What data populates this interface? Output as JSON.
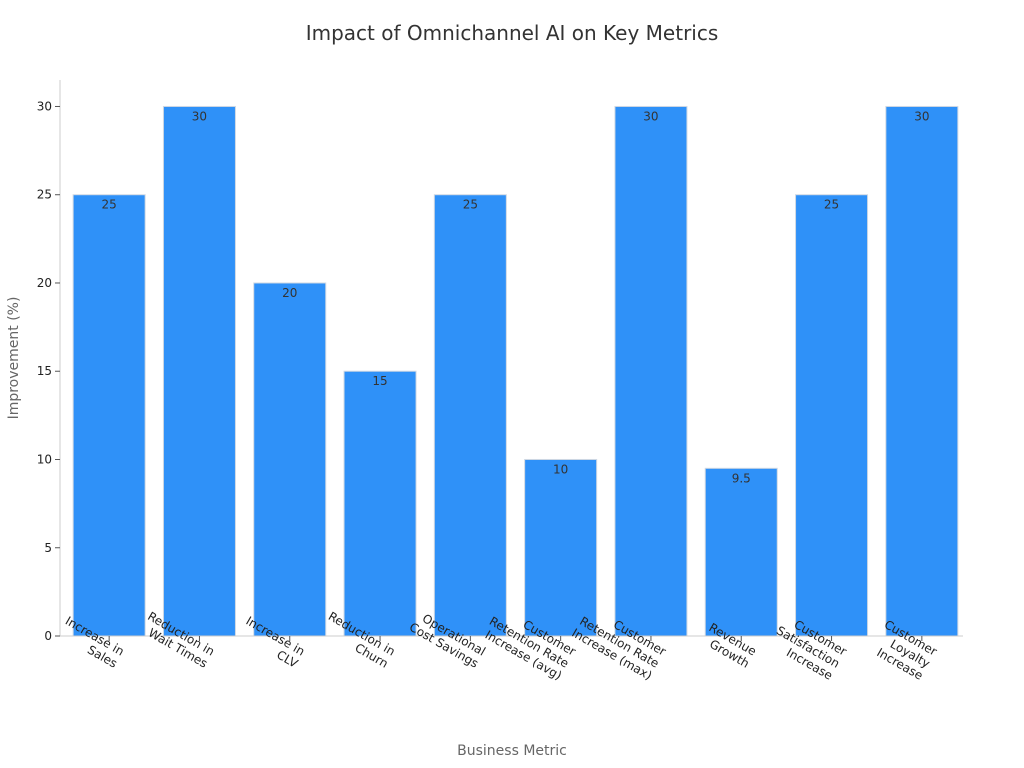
{
  "chart_data": {
    "type": "bar",
    "title": "Impact of Omnichannel AI on Key Metrics",
    "xlabel": "Business Metric",
    "ylabel": "Improvement (%)",
    "categories": [
      "Increase in Sales",
      "Reduction in Wait Times",
      "Increase in CLV",
      "Reduction in Churn",
      "Operational Cost Savings",
      "Customer Retention Rate Increase (avg)",
      "Customer Retention Rate Increase (max)",
      "Revenue Growth",
      "Customer Satisfaction Increase",
      "Customer Loyalty Increase"
    ],
    "category_label_lines": [
      [
        "Increase in",
        "Sales"
      ],
      [
        "Reduction in",
        "Wait Times"
      ],
      [
        "Increase in",
        "CLV"
      ],
      [
        "Reduction in",
        "Churn"
      ],
      [
        "Operational",
        "Cost Savings"
      ],
      [
        "Customer",
        "Retention Rate",
        "Increase (avg)"
      ],
      [
        "Customer",
        "Retention Rate",
        "Increase (max)"
      ],
      [
        "Revenue",
        "Growth"
      ],
      [
        "Customer",
        "Satisfaction",
        "Increase"
      ],
      [
        "Customer",
        "Loyalty",
        "Increase"
      ]
    ],
    "values": [
      25,
      30,
      20,
      15,
      25,
      10,
      30,
      9.5,
      25,
      30
    ],
    "data_labels": [
      "25",
      "30",
      "20",
      "15",
      "25",
      "10",
      "30",
      "9.5",
      "25",
      "30"
    ],
    "ylim": [
      0,
      31.5
    ],
    "yticks": [
      0,
      5,
      10,
      15,
      20,
      25,
      30
    ],
    "bar_color": "#2f91f8",
    "grid": false,
    "legend": "none"
  }
}
